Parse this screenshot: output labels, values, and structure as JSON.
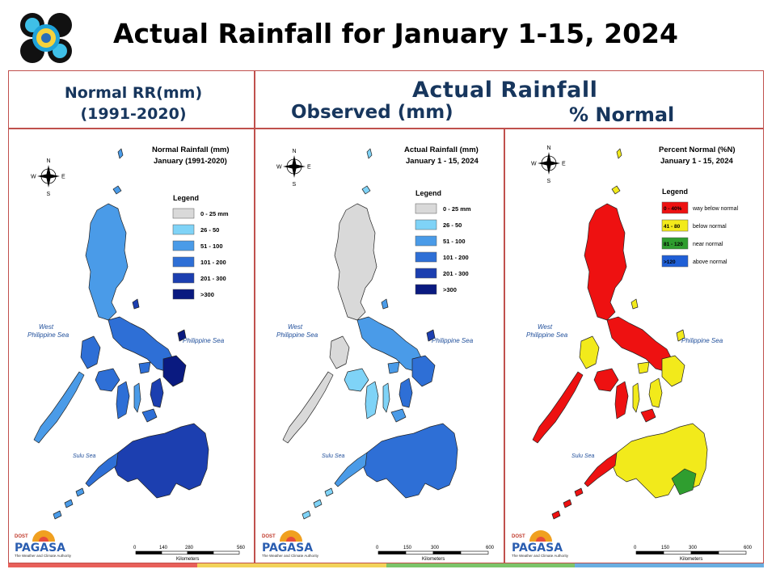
{
  "slide": {
    "title": "Actual Rainfall for January 1-15, 2024",
    "header_normal_line1": "Normal RR(mm)",
    "header_normal_line2": "(1991-2020)",
    "header_actual": "Actual Rainfall",
    "header_observed": "Observed (mm)",
    "header_percent": "% Normal"
  },
  "compass": {
    "n": "N",
    "s": "S",
    "e": "E",
    "w": "W"
  },
  "labels": {
    "west_sea_1": "West",
    "west_sea_2": "Philippine Sea",
    "east_sea": "Philippine Sea",
    "sulu_sea": "Sulu Sea",
    "kilometers": "Kilometers",
    "legend": "Legend",
    "pagasa": "PAGASA",
    "dost": "DOST",
    "pagasa_tagline": "The Weather and Climate Authority"
  },
  "panels": [
    {
      "id": "normal",
      "title_line1": "Normal Rainfall (mm)",
      "title_line2": "January (1991-2020)",
      "scale_ticks": [
        "0",
        "140",
        "280",
        "560"
      ],
      "legend": [
        {
          "label": "0 - 25 mm",
          "color": "#d9d9d9"
        },
        {
          "label": "26 - 50",
          "color": "#7fd3f7"
        },
        {
          "label": "51 - 100",
          "color": "#4a9be8"
        },
        {
          "label": "101 - 200",
          "color": "#2e6fd6"
        },
        {
          "label": "201 - 300",
          "color": "#1c3fb0"
        },
        {
          "label": ">300",
          "color": "#0a1a80"
        }
      ]
    },
    {
      "id": "observed",
      "title_line1": "Actual Rainfall (mm)",
      "title_line2": "January 1 - 15, 2024",
      "scale_ticks": [
        "0",
        "150",
        "300",
        "600"
      ],
      "legend": [
        {
          "label": "0 - 25 mm",
          "color": "#d9d9d9"
        },
        {
          "label": "26 - 50",
          "color": "#7fd3f7"
        },
        {
          "label": "51 - 100",
          "color": "#4a9be8"
        },
        {
          "label": "101 - 200",
          "color": "#2e6fd6"
        },
        {
          "label": "201 - 300",
          "color": "#1c3fb0"
        },
        {
          "label": ">300",
          "color": "#0a1a80"
        }
      ]
    },
    {
      "id": "percent",
      "title_line1": "Percent Normal (%N)",
      "title_line2": "January 1 - 15, 2024",
      "scale_ticks": [
        "0",
        "150",
        "300",
        "600"
      ],
      "legend": [
        {
          "label": "0 - 40%",
          "desc": "way below normal",
          "color": "#ee1111"
        },
        {
          "label": "41 - 80",
          "desc": "below normal",
          "color": "#f2ea1b"
        },
        {
          "label": "81 - 120",
          "desc": "near normal",
          "color": "#2f9e2f"
        },
        {
          "label": ">120",
          "desc": "above normal",
          "color": "#1f5fd6"
        }
      ]
    }
  ],
  "colors": {
    "frame": "#c0504d",
    "header_text": "#17365d",
    "strip": [
      "#e8605a",
      "#f2d25a",
      "#7cc46a",
      "#6aaee0"
    ]
  }
}
